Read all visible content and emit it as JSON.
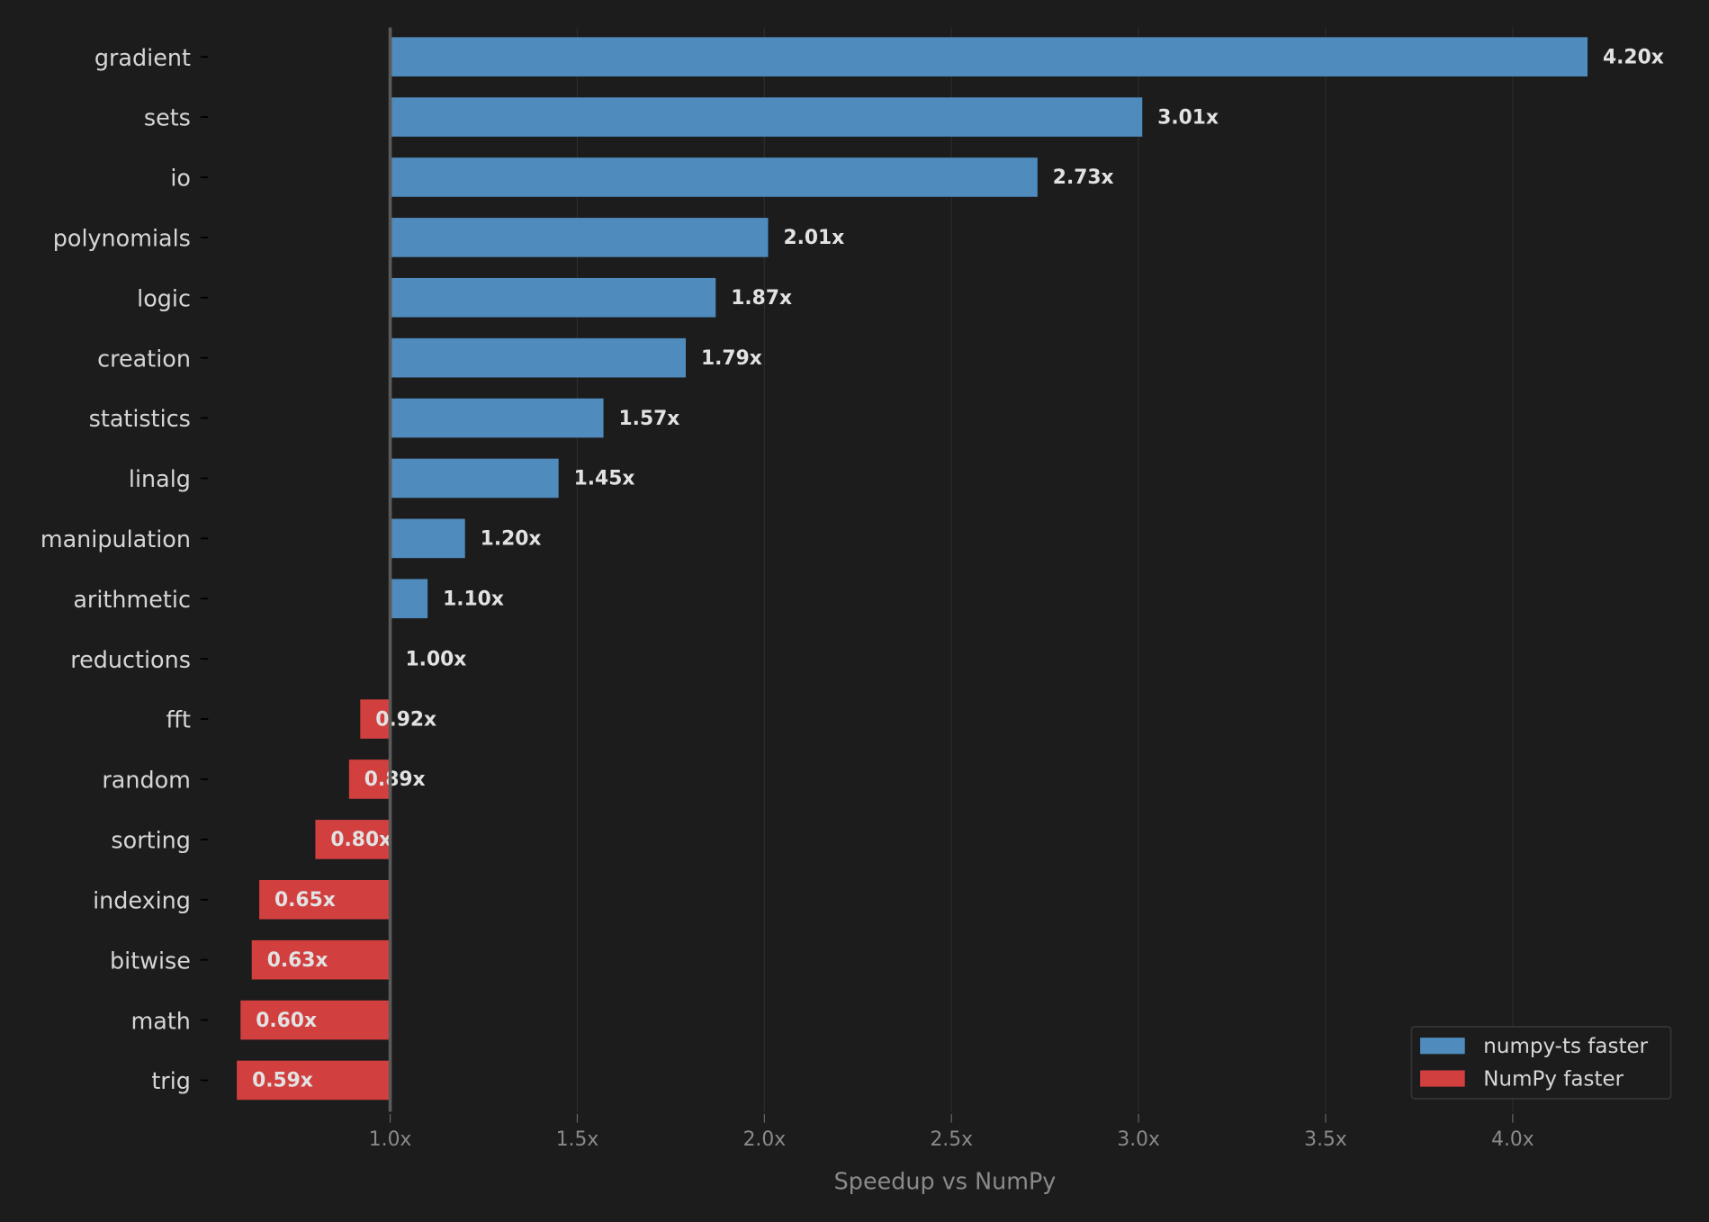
{
  "chart_data": {
    "type": "bar",
    "orientation": "horizontal",
    "baseline": 1.0,
    "categories": [
      "gradient",
      "sets",
      "io",
      "polynomials",
      "logic",
      "creation",
      "statistics",
      "linalg",
      "manipulation",
      "arithmetic",
      "reductions",
      "fft",
      "random",
      "sorting",
      "indexing",
      "bitwise",
      "math",
      "trig"
    ],
    "values": [
      4.2,
      3.01,
      2.73,
      2.01,
      1.87,
      1.79,
      1.57,
      1.45,
      1.2,
      1.1,
      1.0,
      0.92,
      0.89,
      0.8,
      0.65,
      0.63,
      0.6,
      0.59
    ],
    "data_labels": [
      "4.20x",
      "3.01x",
      "2.73x",
      "2.01x",
      "1.87x",
      "1.79x",
      "1.57x",
      "1.45x",
      "1.20x",
      "1.10x",
      "1.00x",
      "0.92x",
      "0.89x",
      "0.80x",
      "0.65x",
      "0.63x",
      "0.60x",
      "0.59x"
    ],
    "xlabel": "Speedup vs NumPy",
    "ylabel": "",
    "xlim": [
      0.52,
      4.43
    ],
    "xticks": [
      1.0,
      1.5,
      2.0,
      2.5,
      3.0,
      3.5,
      4.0
    ],
    "xtick_labels": [
      "1.0x",
      "1.5x",
      "2.0x",
      "2.5x",
      "3.0x",
      "3.5x",
      "4.0x"
    ],
    "grid": "vertical",
    "legend": {
      "placement": "bottom-right",
      "entries": [
        {
          "label": "numpy-ts faster",
          "color": "#4f8bbd"
        },
        {
          "label": "NumPy faster",
          "color": "#d13f3f"
        }
      ]
    },
    "colors": {
      "faster": "#4f8bbd",
      "slower": "#d13f3f",
      "background": "#1c1c1c"
    }
  }
}
